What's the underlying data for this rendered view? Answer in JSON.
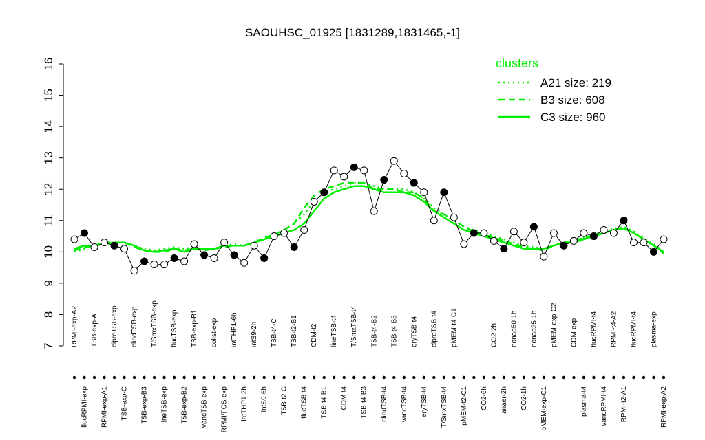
{
  "chart_data": {
    "type": "line",
    "title": "SAOUHSC_01925 [1831289,1831465,-1]",
    "ylim": [
      7,
      16
    ],
    "yticks": [
      7,
      8,
      9,
      10,
      11,
      12,
      13,
      14,
      15,
      16
    ],
    "categories": [
      "RPMI-exp-A2",
      "flucRPMI-exp",
      "TSB-exp-A",
      "RPMI-exp-A1",
      "ciproTSB-exp",
      "TSB-exp-C",
      "clindTSB-exp",
      "TSB-exp-B3",
      "T/SmxTSB-exp",
      "lineTSB-exp",
      "flucTSB-exp",
      "TSB-exp-B2",
      "TSB-exp-B1",
      "vancTSB-exp",
      "colist-exp",
      "RPMI/FCS-exp",
      "intTHP1-6h",
      "intTHP1-2h",
      "intS9-2h",
      "intS9-6h",
      "TSB-t4-C",
      "TSB-t2-C",
      "TSB-t2-B1",
      "flucTSB-t4",
      "CDM-t2",
      "TSB-t4-B1",
      "lineTSB-t4",
      "CDM-t4",
      "T/SmxTSB-t4",
      "TSB-t4-B3",
      "TSB-t4-B2",
      "clindTSB-t4",
      "TSB-t4-B3",
      "vancTSB-t4",
      "eryTSB-t4",
      "eryTSB-t4",
      "ciproTSB-t4",
      "T/SmxTSB-t4",
      "pMEM-t4-C1",
      "pMEM-t2-C1",
      null,
      "CO2-6h",
      "CO2-2h",
      "anaer-2h",
      "nonad50-1h",
      "CO2-1h",
      "nonad25-1h",
      "pMEM-exp-C1",
      "pMEM-exp-C2",
      null,
      "CDM-exp",
      "plasma-t4",
      "flucRPMI-t4",
      "vancRPMI-t4",
      "RPMI-t4-A2",
      "RPMI-t2-A1",
      "flucRPMI-t4",
      null,
      "plasma-exp",
      "RPMI-exp-A2"
    ],
    "values": [
      10.4,
      10.6,
      10.15,
      10.3,
      10.2,
      10.1,
      9.4,
      9.7,
      9.6,
      9.6,
      9.8,
      9.7,
      10.25,
      9.9,
      9.8,
      10.3,
      9.9,
      9.65,
      10.2,
      9.8,
      10.5,
      10.6,
      10.15,
      10.7,
      11.6,
      11.9,
      12.6,
      12.4,
      12.7,
      12.6,
      11.3,
      12.3,
      12.9,
      12.5,
      12.2,
      11.9,
      11.0,
      11.9,
      11.1,
      10.25,
      10.6,
      10.6,
      10.35,
      10.1,
      10.65,
      10.3,
      10.8,
      9.85,
      10.6,
      10.2,
      10.35,
      10.6,
      10.5,
      10.7,
      10.6,
      11.0,
      10.3,
      10.3,
      10.0,
      10.4
    ],
    "legend_title": "clusters",
    "series": [
      {
        "name": "A21 size: 219",
        "color": "#00ee00",
        "dash": "2,5",
        "values": [
          10.0,
          10.1,
          10.2,
          10.25,
          10.3,
          10.3,
          10.2,
          10.1,
          10.05,
          10.1,
          10.15,
          10.1,
          10.15,
          10.1,
          10.1,
          10.2,
          10.25,
          10.2,
          10.3,
          10.4,
          10.5,
          10.7,
          10.9,
          11.2,
          11.6,
          11.9,
          12.0,
          12.1,
          12.2,
          12.2,
          12.1,
          12.0,
          12.0,
          12.0,
          11.9,
          11.7,
          11.4,
          11.2,
          11.0,
          10.8,
          10.7,
          10.6,
          10.5,
          10.4,
          10.3,
          10.2,
          10.15,
          10.1,
          10.2,
          10.3,
          10.35,
          10.45,
          10.55,
          10.65,
          10.75,
          10.8,
          10.65,
          10.45,
          10.25,
          10.0
        ]
      },
      {
        "name": "B3 size: 608",
        "color": "#00ee00",
        "dash": "9,6",
        "values": [
          10.05,
          10.15,
          10.2,
          10.3,
          10.3,
          10.3,
          10.15,
          10.05,
          10.0,
          10.0,
          10.1,
          10.05,
          10.1,
          10.05,
          10.1,
          10.15,
          10.2,
          10.2,
          10.3,
          10.45,
          10.55,
          10.7,
          10.9,
          11.4,
          11.8,
          12.0,
          12.1,
          12.2,
          12.2,
          12.2,
          12.0,
          12.0,
          12.0,
          11.9,
          11.9,
          11.7,
          11.3,
          11.2,
          11.0,
          10.8,
          10.65,
          10.55,
          10.45,
          10.35,
          10.25,
          10.15,
          10.1,
          10.05,
          10.2,
          10.3,
          10.35,
          10.45,
          10.5,
          10.6,
          10.7,
          10.75,
          10.6,
          10.4,
          10.2,
          9.95
        ]
      },
      {
        "name": "C3 size: 960",
        "color": "#00ee00",
        "dash": "",
        "values": [
          10.1,
          10.2,
          10.2,
          10.25,
          10.3,
          10.3,
          10.2,
          10.05,
          10.0,
          10.05,
          10.1,
          10.0,
          10.1,
          10.1,
          10.1,
          10.2,
          10.2,
          10.2,
          10.3,
          10.4,
          10.5,
          10.6,
          10.7,
          10.9,
          11.3,
          11.7,
          11.9,
          12.0,
          12.1,
          12.1,
          12.0,
          11.9,
          11.9,
          11.9,
          11.8,
          11.6,
          11.3,
          11.1,
          10.9,
          10.7,
          10.6,
          10.5,
          10.4,
          10.3,
          10.2,
          10.1,
          10.1,
          10.1,
          10.2,
          10.3,
          10.3,
          10.4,
          10.5,
          10.6,
          10.7,
          10.75,
          10.6,
          10.4,
          10.2,
          10.0
        ]
      }
    ]
  }
}
